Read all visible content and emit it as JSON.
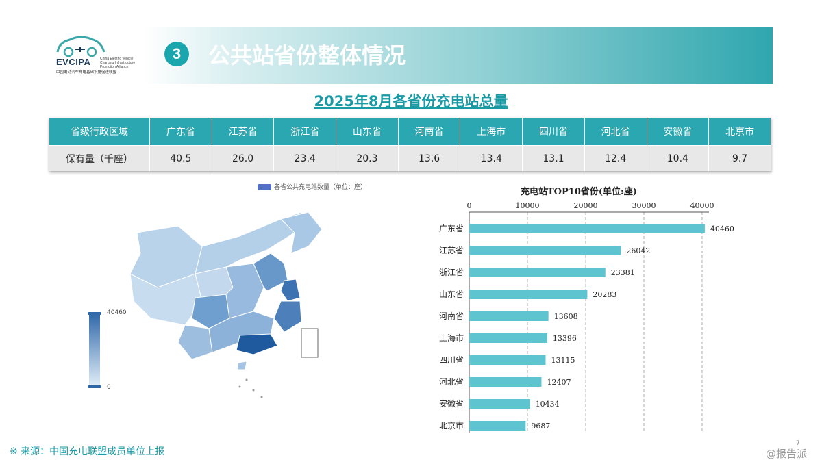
{
  "header": {
    "logo_text": "EVCIPA",
    "logo_sub": "China Electric Vehicle Charging Infrastructure Promotion Alliance",
    "logo_cn": "中国电动汽车充电基础设施促进联盟",
    "section_number": "3",
    "section_title": "公共站省份整体情况"
  },
  "title": "2025年8月各省份充电站总量",
  "summary_table": {
    "header_label": "省级行政区域",
    "row_label": "保有量（千座）",
    "provinces": [
      "广东省",
      "江苏省",
      "浙江省",
      "山东省",
      "河南省",
      "上海市",
      "四川省",
      "河北省",
      "安徽省",
      "北京市"
    ],
    "values": [
      "40.5",
      "26.0",
      "23.4",
      "20.3",
      "13.6",
      "13.4",
      "13.1",
      "12.4",
      "10.4",
      "9.7"
    ]
  },
  "map": {
    "legend": "各省公共充电站数量（单位：座）",
    "visual_max": "40460",
    "visual_min": "0"
  },
  "chart_data": {
    "type": "bar",
    "orientation": "horizontal",
    "title": "充电站TOP10省份(单位:座)",
    "categories": [
      "广东省",
      "江苏省",
      "浙江省",
      "山东省",
      "河南省",
      "上海市",
      "四川省",
      "河北省",
      "安徽省",
      "北京市"
    ],
    "values": [
      40460,
      26042,
      23381,
      20283,
      13608,
      13396,
      13115,
      12407,
      10434,
      9687
    ],
    "xlim": [
      0,
      40000
    ],
    "x_ticks": [
      0,
      10000,
      20000,
      30000,
      40000
    ],
    "x_axis_position": "top",
    "grid": true,
    "bar_color": "#5ec5d0"
  },
  "footer": {
    "source": "※ 来源：中国充电联盟成员单位上报",
    "page_number": "7",
    "watermark": "@报告派"
  }
}
